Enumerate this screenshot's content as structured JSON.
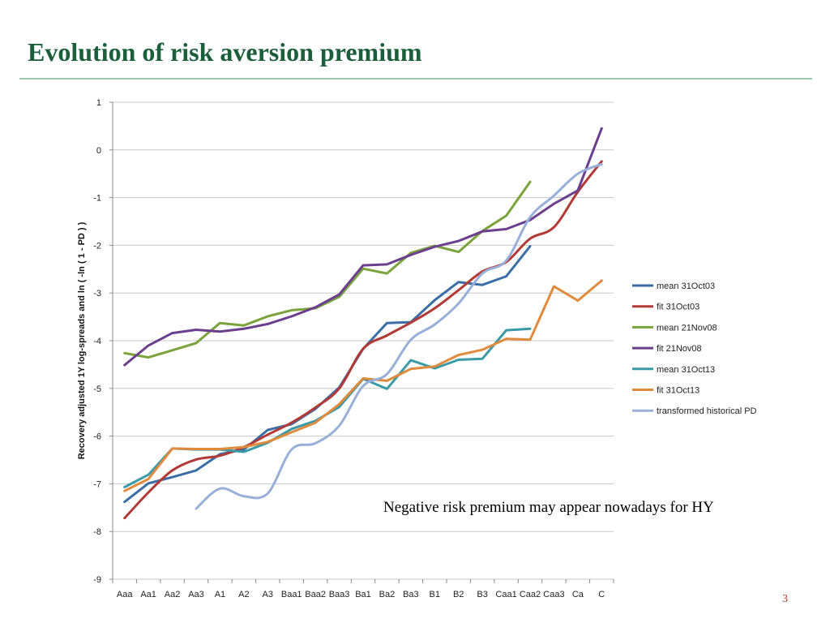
{
  "slide": {
    "title": "Evolution of risk aversion premium",
    "annotation": "Negative risk premium may appear nowadays for HY",
    "page_number": "3"
  },
  "chart_data": {
    "type": "line",
    "ylabel": "Recovery adjusted 1Y log-spreads and ln ( -ln ( 1 - PD ) )",
    "xlabel": "",
    "ylim": [
      -9,
      1
    ],
    "yticks": [
      1,
      0,
      -1,
      -2,
      -3,
      -4,
      -5,
      -6,
      -7,
      -8,
      -9
    ],
    "grid": true,
    "legend_position": "right",
    "categories": [
      "Aaa",
      "Aa1",
      "Aa2",
      "Aa3",
      "A1",
      "A2",
      "A3",
      "Baa1",
      "Baa2",
      "Baa3",
      "Ba1",
      "Ba2",
      "Ba3",
      "B1",
      "B2",
      "B3",
      "Caa1",
      "Caa2",
      "Caa3",
      "Ca",
      "C"
    ],
    "series": [
      {
        "name": "mean 31Oct03",
        "color": "#3a6ea5",
        "smooth": false,
        "values": [
          -7.38,
          -6.99,
          -6.86,
          -6.72,
          -6.38,
          -6.28,
          -5.87,
          -5.75,
          -5.43,
          -4.98,
          -4.17,
          -3.63,
          -3.61,
          -3.15,
          -2.77,
          -2.83,
          -2.65,
          -2.02,
          null,
          null,
          null
        ]
      },
      {
        "name": "fit 31Oct03",
        "color": "#b23a36",
        "smooth": true,
        "values": [
          -7.72,
          -7.18,
          -6.72,
          -6.49,
          -6.41,
          -6.23,
          -5.97,
          -5.72,
          -5.4,
          -5.0,
          -4.17,
          -3.89,
          -3.62,
          -3.32,
          -2.94,
          -2.55,
          -2.35,
          -1.86,
          -1.62,
          -0.88,
          -0.24
        ]
      },
      {
        "name": "mean 21Nov08",
        "color": "#7aa33c",
        "smooth": false,
        "values": [
          -4.26,
          -4.35,
          -4.2,
          -4.05,
          -3.63,
          -3.68,
          -3.49,
          -3.36,
          -3.32,
          -3.08,
          -2.49,
          -2.59,
          -2.16,
          -2.01,
          -2.14,
          -1.7,
          -1.38,
          -0.67,
          null,
          null,
          null
        ]
      },
      {
        "name": "fit 21Nov08",
        "color": "#6b3f8e",
        "smooth": false,
        "values": [
          -4.51,
          -4.1,
          -3.84,
          -3.77,
          -3.81,
          -3.75,
          -3.65,
          -3.49,
          -3.3,
          -3.03,
          -2.42,
          -2.4,
          -2.2,
          -2.03,
          -1.91,
          -1.71,
          -1.66,
          -1.47,
          -1.13,
          -0.85,
          0.45
        ]
      },
      {
        "name": "mean 31Oct13",
        "color": "#3a9aa6",
        "smooth": false,
        "values": [
          -7.07,
          -6.81,
          -6.26,
          -6.28,
          -6.28,
          -6.33,
          -6.14,
          -5.85,
          -5.68,
          -5.39,
          -4.8,
          -5.01,
          -4.41,
          -4.58,
          -4.4,
          -4.38,
          -3.78,
          -3.75,
          null,
          null,
          null
        ]
      },
      {
        "name": "fit 31Oct13",
        "color": "#e08a3c",
        "smooth": false,
        "values": [
          -7.15,
          -6.9,
          -6.26,
          -6.27,
          -6.27,
          -6.23,
          -6.12,
          -5.92,
          -5.72,
          -5.33,
          -4.79,
          -4.84,
          -4.59,
          -4.54,
          -4.3,
          -4.19,
          -3.96,
          -3.98,
          -2.86,
          -3.16,
          -2.74
        ]
      },
      {
        "name": "transformed historical PD",
        "color": "#98b0d8",
        "smooth": true,
        "values": [
          null,
          null,
          null,
          -7.52,
          -7.1,
          -7.26,
          -7.2,
          -6.28,
          -6.15,
          -5.78,
          -4.95,
          -4.7,
          -3.98,
          -3.66,
          -3.22,
          -2.59,
          -2.32,
          -1.41,
          -0.96,
          -0.5,
          -0.3
        ]
      }
    ]
  }
}
